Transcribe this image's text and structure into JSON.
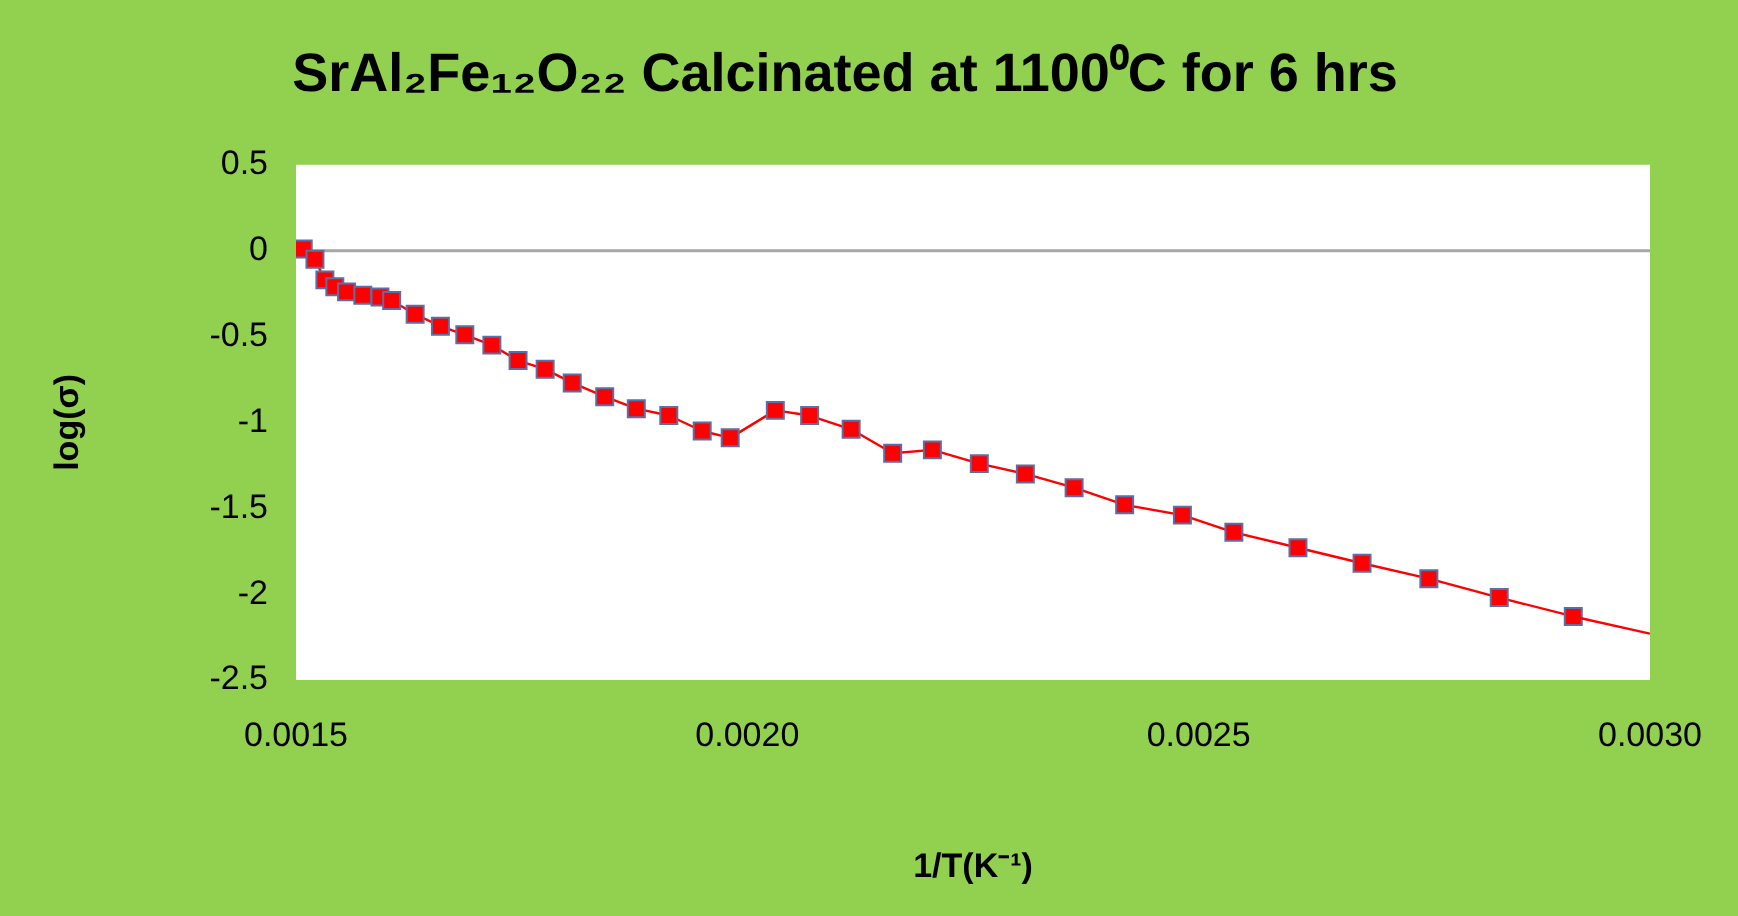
{
  "chart_data": {
    "type": "line",
    "title": "SrAl₂Fe₁₂O₂₂ Calcinated at 1100⁰C for 6 hrs",
    "xlabel": "1/T(K⁻¹)",
    "ylabel": "log(σ)",
    "xlim": [
      0.0015,
      0.003
    ],
    "xticks": [
      {
        "value": 0.0015,
        "label": "0.0015"
      },
      {
        "value": 0.002,
        "label": "0.0020"
      },
      {
        "value": 0.0025,
        "label": "0.0025"
      },
      {
        "value": 0.003,
        "label": "0.0030"
      }
    ],
    "ylim": [
      -2.5,
      0.5
    ],
    "yticks": [
      -2.5,
      -2,
      -1.5,
      -1,
      -0.5,
      0,
      0.5
    ],
    "grid": false,
    "legend": false,
    "marker": "square",
    "line_style": "solid",
    "ref_lines": [
      {
        "axis": "y",
        "value": 0,
        "color": "#a6a6a6"
      }
    ],
    "series": [
      {
        "color": "#ff0000",
        "x": [
          0.001508,
          0.001521,
          0.001532,
          0.001543,
          0.001556,
          0.001574,
          0.001593,
          0.001606,
          0.001632,
          0.00166,
          0.001687,
          0.001717,
          0.001746,
          0.001776,
          0.001806,
          0.001842,
          0.001877,
          0.001913,
          0.00195,
          0.001981,
          0.002031,
          0.002069,
          0.002115,
          0.002161,
          0.002205,
          0.002257,
          0.002308,
          0.002362,
          0.002418,
          0.002482,
          0.002539,
          0.00261,
          0.002681,
          0.002755,
          0.002833,
          0.002915
        ],
        "values": [
          0.01,
          -0.05,
          -0.17,
          -0.21,
          -0.24,
          -0.26,
          -0.27,
          -0.29,
          -0.37,
          -0.44,
          -0.49,
          -0.55,
          -0.64,
          -0.69,
          -0.77,
          -0.85,
          -0.92,
          -0.96,
          -1.05,
          -1.09,
          -0.93,
          -0.96,
          -1.04,
          -1.18,
          -1.16,
          -1.24,
          -1.3,
          -1.38,
          -1.48,
          -1.54,
          -1.64,
          -1.73,
          -1.82,
          -1.91,
          -2.02,
          -2.13
        ]
      },
      {
        "type": "line",
        "color": "#ff0000",
        "marker": "none",
        "x": [
          0.002915,
          0.003
        ],
        "values": [
          -2.13,
          -2.23
        ]
      }
    ]
  }
}
